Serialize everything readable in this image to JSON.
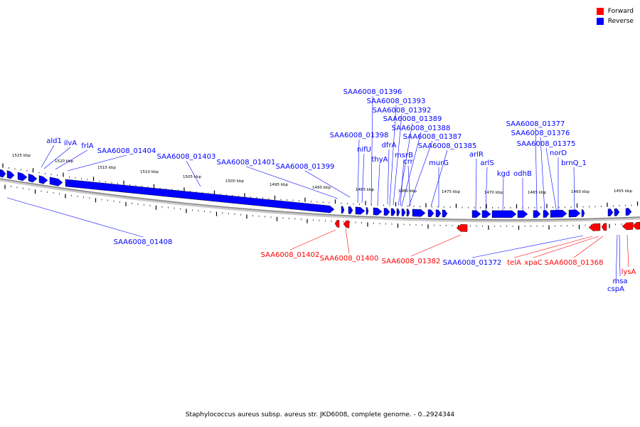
{
  "legend": {
    "items": [
      {
        "label": "Forward",
        "color": "#ff0000"
      },
      {
        "label": "Reverse",
        "color": "#0000ff"
      }
    ]
  },
  "caption": "Staphylococcus aureus subsp. aureus str. JKD6008, complete genome. - 0..2924344",
  "scale": {
    "tick_labels": [
      "1525 kbp",
      "1520 kbp",
      "1515 kbp",
      "1510 kbp",
      "1505 kbp",
      "1500 kbp",
      "1495 kbp",
      "1490 kbp",
      "1485 kbp",
      "1480 kbp",
      "1475 kbp",
      "1470 kbp",
      "1465 kbp",
      "1460 kbp",
      "1455 kbp"
    ]
  },
  "genes": {
    "reverse_labels": [
      "ald1",
      "ilvA",
      "frlA",
      "SAA6008_01404",
      "SAA6008_01403",
      "SAA6008_01401",
      "SAA6008_01399",
      "SAA6008_01398",
      "SAA6008_01396",
      "SAA6008_01393",
      "SAA6008_01392",
      "SAA6008_01389",
      "SAA6008_01388",
      "SAA6008_01387",
      "SAA6008_01385",
      "nifU",
      "thyA",
      "dfrA",
      "msrB",
      "crr",
      "murG",
      "arlR",
      "arlS",
      "kgd",
      "odhB",
      "SAA6008_01377",
      "SAA6008_01376",
      "SAA6008_01375",
      "norD",
      "brnQ_1",
      "SAA6008_01408",
      "SAA6008_01372",
      "cspA",
      "msa"
    ],
    "forward_labels": [
      "SAA6008_01402",
      "SAA6008_01400",
      "SAA6008_01382",
      "telA",
      "xpaC",
      "SAA6008_01368",
      "lysA"
    ]
  },
  "colors": {
    "forward": "#ff0000",
    "reverse": "#0000ff",
    "axis": "#888888"
  }
}
